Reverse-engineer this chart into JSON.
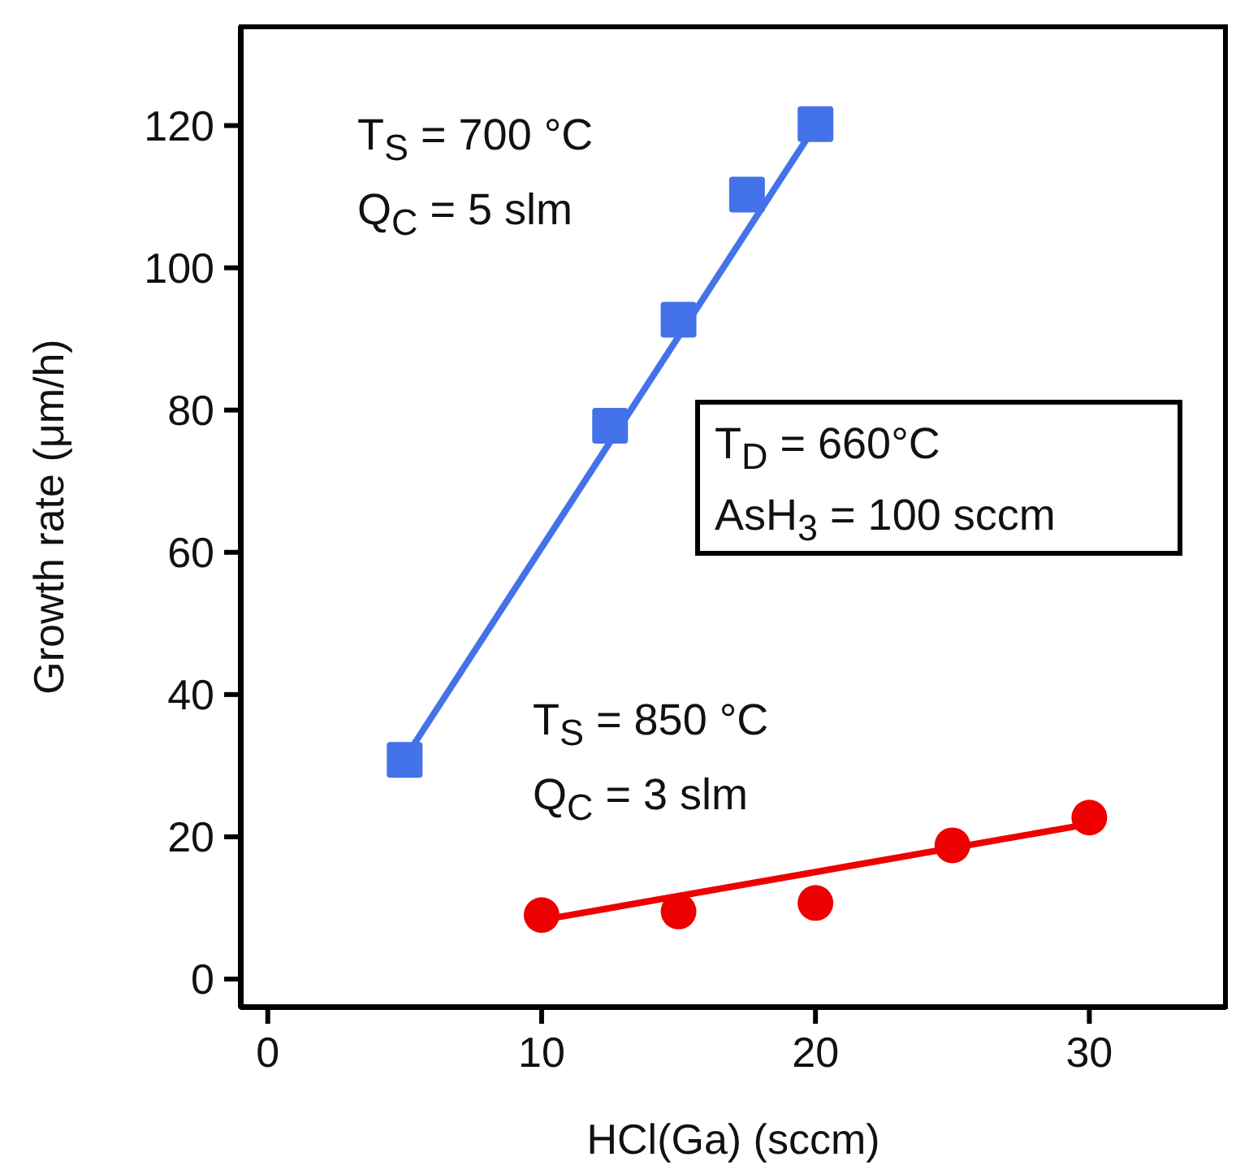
{
  "chart_data": {
    "type": "scatter",
    "xlabel": "HCl(Ga) (sccm)",
    "ylabel": "Growth rate (μm/h)",
    "xlim": [
      -1,
      35
    ],
    "xticks": [
      0,
      10,
      20,
      30
    ],
    "ylim": [
      -4,
      134
    ],
    "yticks": [
      0,
      20,
      40,
      60,
      80,
      100,
      120
    ],
    "grid": false,
    "series": [
      {
        "marker": "square",
        "color": "#4472e8",
        "x": [
          5,
          12.5,
          15,
          17.5,
          20
        ],
        "values": [
          30.8,
          77.8,
          92.7,
          110.3,
          120.2
        ]
      },
      {
        "type": "line",
        "marker": "none",
        "color": "#4472e8",
        "x": [
          5,
          20
        ],
        "values": [
          31,
          120
        ]
      },
      {
        "marker": "circle",
        "color": "#ee0000",
        "x": [
          10,
          15,
          20,
          25,
          30
        ],
        "values": [
          9,
          9.5,
          10.7,
          18.8,
          22.7
        ]
      },
      {
        "type": "line",
        "marker": "none",
        "color": "#ee0000",
        "x": [
          10,
          30
        ],
        "values": [
          8.3,
          21.8
        ]
      }
    ],
    "annotations": [
      "T$_{S}$ = 700 °C",
      "Q$_{C}$ = 5 slm",
      "T$_{D}$ = 660°C",
      "AsH$_{3}$ = 100 sccm",
      "T$_{S}$ = 850 °C",
      "Q$_{C}$ = 3 slm"
    ]
  }
}
